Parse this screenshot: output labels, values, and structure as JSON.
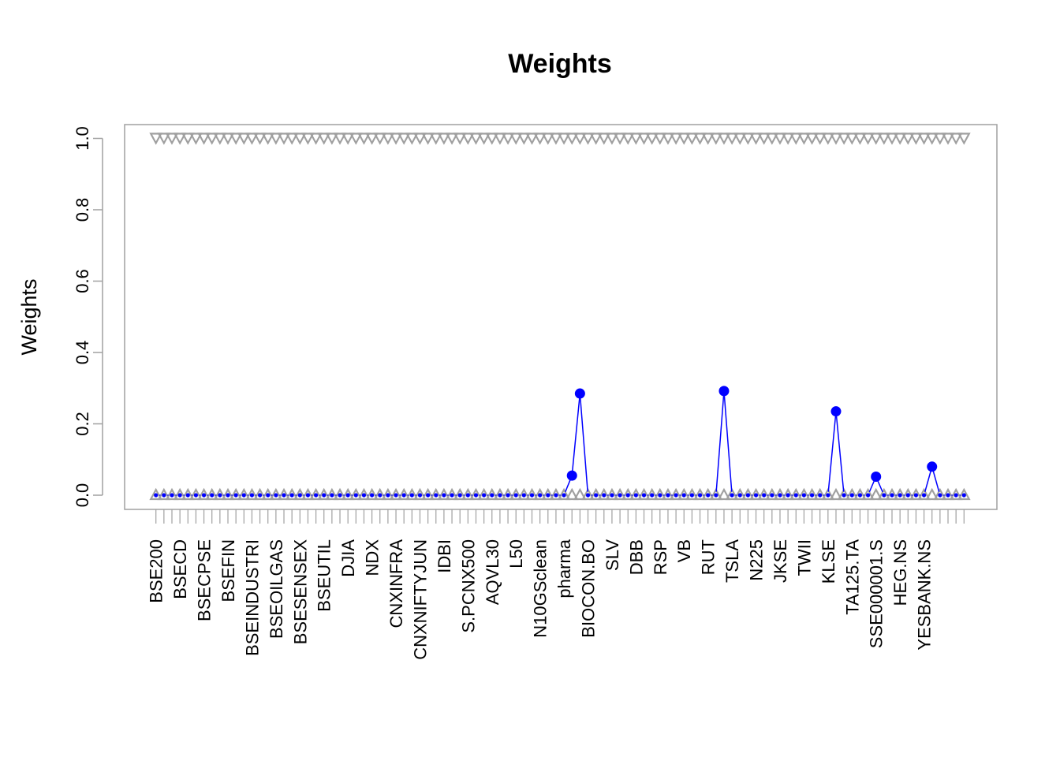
{
  "chart_data": {
    "type": "scatter",
    "title": "Weights",
    "xlabel": "",
    "ylabel": "Weights",
    "ylim": [
      0,
      1
    ],
    "yticks": [
      0.0,
      0.2,
      0.4,
      0.6,
      0.8,
      1.0
    ],
    "ytick_labels": [
      "0.0",
      "0.2",
      "0.4",
      "0.6",
      "0.8",
      "1.0"
    ],
    "n_assets": 102,
    "x_labels": [
      "BSE200",
      "BSECD",
      "BSECPSE",
      "BSEFIN",
      "BSEINDUSTRI",
      "BSEOILGAS",
      "BSESENSEX",
      "BSEUTIL",
      "DJIA",
      "NDX",
      "CNXINFRA",
      "CNXNIFTYJUN",
      "IDBI",
      "S.PCNX500",
      "AQVL30",
      "L50",
      "N10GSclean",
      "pharma",
      "BIOCON.BO",
      "SLV",
      "DBB",
      "RSP",
      "VB",
      "RUT",
      "TSLA",
      "N225",
      "JKSE",
      "TWII",
      "KLSE",
      "TA125.TA",
      "SSE000001.S",
      "HEG.NS",
      "YESBANK.NS"
    ],
    "x_label_indices": [
      1,
      4,
      7,
      10,
      13,
      16,
      19,
      22,
      25,
      28,
      31,
      34,
      37,
      40,
      43,
      46,
      49,
      52,
      55,
      58,
      61,
      64,
      67,
      70,
      73,
      76,
      79,
      82,
      85,
      88,
      91,
      94,
      97
    ],
    "series": [
      {
        "role": "weights",
        "color": "#0000FF",
        "nonzero_points": [
          {
            "index": 53,
            "value": 0.055
          },
          {
            "index": 54,
            "value": 0.285
          },
          {
            "index": 72,
            "value": 0.292
          },
          {
            "index": 86,
            "value": 0.235
          },
          {
            "index": 91,
            "value": 0.052
          },
          {
            "index": 98,
            "value": 0.08
          }
        ],
        "default_value": 0.0
      },
      {
        "role": "upper-bound",
        "color": "#A0A0A0",
        "marker": "triangle-down",
        "value": 1.0
      },
      {
        "role": "lower-bound",
        "color": "#A0A0A0",
        "marker": "triangle-up",
        "value": 0.0
      }
    ],
    "grid": false,
    "legend": "none"
  }
}
